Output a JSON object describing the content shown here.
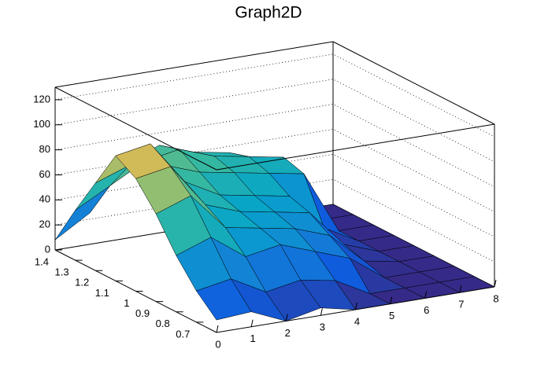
{
  "chart_data": {
    "type": "surface",
    "title": "Graph2D",
    "x": [
      0,
      1,
      2,
      3,
      4,
      5,
      6,
      7,
      8
    ],
    "y": [
      0.6,
      0.7,
      0.8,
      0.9,
      1.0,
      1.1,
      1.2,
      1.3,
      1.4
    ],
    "z": [
      [
        10,
        12,
        0,
        6,
        0,
        0,
        0,
        0,
        0
      ],
      [
        25,
        30,
        15,
        20,
        15,
        0,
        0,
        0,
        0
      ],
      [
        45,
        55,
        35,
        40,
        30,
        20,
        0,
        0,
        0
      ],
      [
        70,
        80,
        50,
        45,
        40,
        30,
        5,
        0,
        0
      ],
      [
        90,
        95,
        60,
        50,
        45,
        40,
        10,
        0,
        0
      ],
      [
        100,
        105,
        70,
        55,
        50,
        45,
        15,
        0,
        0
      ],
      [
        70,
        80,
        75,
        65,
        60,
        55,
        50,
        0,
        0
      ],
      [
        40,
        55,
        70,
        75,
        65,
        60,
        55,
        0,
        0
      ],
      [
        8,
        25,
        60,
        70,
        60,
        55,
        45,
        0,
        0
      ]
    ],
    "xlim": [
      0,
      8
    ],
    "ylim": [
      0.6,
      1.4
    ],
    "zlim": [
      0,
      130
    ],
    "xticks": [
      0,
      1,
      2,
      3,
      4,
      5,
      6,
      7,
      8
    ],
    "yticks": [
      0.7,
      0.8,
      0.9,
      1,
      1.1,
      1.2,
      1.3,
      1.4
    ],
    "zticks": [
      0,
      20,
      40,
      60,
      80,
      100,
      120
    ],
    "grid": true
  }
}
